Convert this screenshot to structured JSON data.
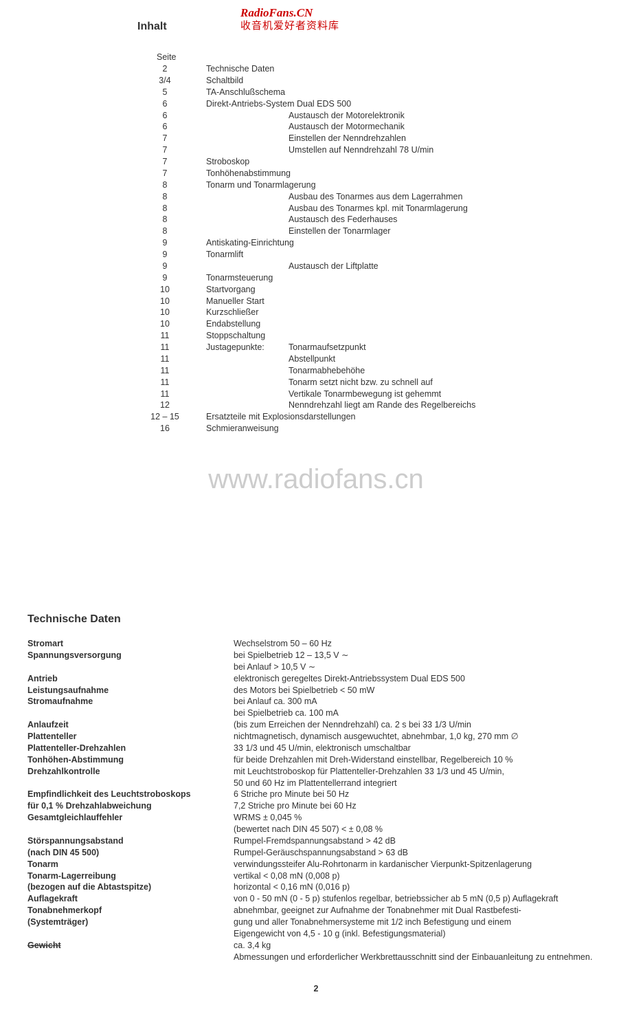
{
  "watermark_top_line1": "RadioFans.CN",
  "watermark_top_line2": "收音机爱好者资料库",
  "watermark_mid": "www.radiofans.cn",
  "heading_inhalt": "Inhalt",
  "toc_header": "Seite",
  "toc": [
    {
      "page": "2",
      "desc": "Technische Daten",
      "indent": 0
    },
    {
      "page": "3/4",
      "desc": "Schaltbild",
      "indent": 0
    },
    {
      "page": "5",
      "desc": "TA-Anschlußschema",
      "indent": 0
    },
    {
      "page": "6",
      "desc": "Direkt-Antriebs-System Dual EDS 500",
      "indent": 0
    },
    {
      "page": "6",
      "desc": "Austausch der Motorelektronik",
      "indent": 1
    },
    {
      "page": "6",
      "desc": "Austausch der Motormechanik",
      "indent": 1
    },
    {
      "page": "7",
      "desc": "Einstellen der Nenndrehzahlen",
      "indent": 1
    },
    {
      "page": "7",
      "desc": "Umstellen auf Nenndrehzahl 78 U/min",
      "indent": 1
    },
    {
      "page": "7",
      "desc": "Stroboskop",
      "indent": 0
    },
    {
      "page": "7",
      "desc": "Tonhöhenabstimmung",
      "indent": 0
    },
    {
      "page": "8",
      "desc": "Tonarm und Tonarmlagerung",
      "indent": 0
    },
    {
      "page": "8",
      "desc": "Ausbau des Tonarmes aus dem Lagerrahmen",
      "indent": 1
    },
    {
      "page": "8",
      "desc": "Ausbau des Tonarmes kpl. mit Tonarmlagerung",
      "indent": 1
    },
    {
      "page": "8",
      "desc": "Austausch des Federhauses",
      "indent": 1
    },
    {
      "page": "8",
      "desc": "Einstellen der Tonarmlager",
      "indent": 1
    },
    {
      "page": "9",
      "desc": "Antiskating-Einrichtung",
      "indent": 0
    },
    {
      "page": "9",
      "desc": "Tonarmlift",
      "indent": 0
    },
    {
      "page": "9",
      "desc": "Austausch der Liftplatte",
      "indent": 1
    },
    {
      "page": "9",
      "desc": "Tonarmsteuerung",
      "indent": 0
    },
    {
      "page": "10",
      "desc": "Startvorgang",
      "indent": 0
    },
    {
      "page": "10",
      "desc": "Manueller Start",
      "indent": 0
    },
    {
      "page": "10",
      "desc": "Kurzschließer",
      "indent": 0
    },
    {
      "page": "10",
      "desc": "Endabstellung",
      "indent": 0
    },
    {
      "page": "11",
      "desc": "Stoppschaltung",
      "indent": 0
    },
    {
      "page": "11",
      "jp_label": "Justagepunkte:",
      "desc": "Tonarmaufsetzpunkt",
      "indent": 2
    },
    {
      "page": "11",
      "desc": "Abstellpunkt",
      "indent": 1
    },
    {
      "page": "11",
      "desc": "Tonarmabhebehöhe",
      "indent": 1
    },
    {
      "page": "11",
      "desc": "Tonarm setzt nicht bzw. zu schnell auf",
      "indent": 1
    },
    {
      "page": "11",
      "desc": "Vertikale Tonarmbewegung ist gehemmt",
      "indent": 1
    },
    {
      "page": "12",
      "desc": "Nenndrehzahl liegt am Rande des Regelbereichs",
      "indent": 1
    },
    {
      "page": "12 – 15",
      "desc": "Ersatzteile mit Explosionsdarstellungen",
      "indent": 0
    },
    {
      "page": "16",
      "desc": "Schmieranweisung",
      "indent": 0
    }
  ],
  "heading_techdat": "Technische Daten",
  "specs": [
    {
      "label": "Stromart",
      "val": "Wechselstrom 50 – 60 Hz"
    },
    {
      "label": "Spannungsversorgung",
      "val": "bei Spielbetrieb  12 – 13,5 V ∼"
    },
    {
      "label": "",
      "val": "bei Anlauf              > 10,5 V ∼"
    },
    {
      "label": "Antrieb",
      "val": "elektronisch geregeltes Direkt-Antriebssystem Dual EDS 500"
    },
    {
      "label": "Leistungsaufnahme",
      "val": "des Motors bei Spielbetrieb < 50 mW"
    },
    {
      "label": "Stromaufnahme",
      "val": "bei Anlauf        ca. 300 mA"
    },
    {
      "label": "",
      "val": "bei Spielbetrieb  ca. 100 mA"
    },
    {
      "label": "Anlaufzeit",
      "val": "(bis zum Erreichen der Nenndrehzahl) ca. 2 s bei 33 1/3 U/min"
    },
    {
      "label": "Plattenteller",
      "val": "nichtmagnetisch, dynamisch ausgewuchtet, abnehmbar, 1,0 kg, 270 mm ∅"
    },
    {
      "label": "Plattenteller-Drehzahlen",
      "val": "33 1/3 und 45 U/min, elektronisch umschaltbar"
    },
    {
      "label": "Tonhöhen-Abstimmung",
      "val": "für beide Drehzahlen mit Dreh-Widerstand einstellbar, Regelbereich 10 %"
    },
    {
      "label": "Drehzahlkontrolle",
      "val": "mit Leuchtstroboskop für Plattenteller-Drehzahlen 33 1/3 und 45 U/min,"
    },
    {
      "label": "",
      "val": "50 und 60 Hz im Plattentellerrand integriert"
    },
    {
      "label": "Empfindlichkeit des Leuchtstroboskops",
      "val": "6    Striche pro Minute bei 50 Hz"
    },
    {
      "label": "für 0,1 % Drehzahlabweichung",
      "val": "7,2 Striche pro Minute bei 60 Hz"
    },
    {
      "label": "Gesamtgleichlauffehler",
      "val": "WRMS                                          ± 0,045 %"
    },
    {
      "label": "",
      "val": "(bewertet nach DIN 45 507)    < ± 0,08    %"
    },
    {
      "label": "Störspannungsabstand",
      "val": "Rumpel-Fremdspannungsabstand      > 42 dB"
    },
    {
      "label": "(nach DIN 45 500)",
      "val": "Rumpel-Geräuschspannungsabstand   > 63 dB"
    },
    {
      "label": "Tonarm",
      "val": "verwindungssteifer Alu-Rohrtonarm in kardanischer Vierpunkt-Spitzenlagerung"
    },
    {
      "label": "Tonarm-Lagerreibung",
      "val": "vertikal      < 0,08 mN (0,008 p)"
    },
    {
      "label": "(bezogen auf die Abtastspitze)",
      "val": "horizontal  < 0,16 mN (0,016 p)"
    },
    {
      "label": "Auflagekraft",
      "val": "von 0 - 50 mN (0 - 5 p) stufenlos regelbar, betriebssicher ab 5 mN (0,5 p) Auflagekraft"
    },
    {
      "label": "Tonabnehmerkopf",
      "val": "abnehmbar, geeignet zur Aufnahme der Tonabnehmer mit Dual Rastbefesti-"
    },
    {
      "label": "(Systemträger)",
      "val": "gung und aller Tonabnehmersysteme mit 1/2 inch Befestigung und einem"
    },
    {
      "label": "",
      "val": "Eigengewicht von 4,5 - 10 g (inkl. Befestigungsmaterial)"
    },
    {
      "label": "Gewicht",
      "val": "ca. 3,4 kg",
      "strike": true
    },
    {
      "label": "",
      "val": "Abmessungen und erforderlicher Werkbrettausschnitt sind der Einbauanleitung zu entnehmen."
    }
  ],
  "page_number": "2"
}
